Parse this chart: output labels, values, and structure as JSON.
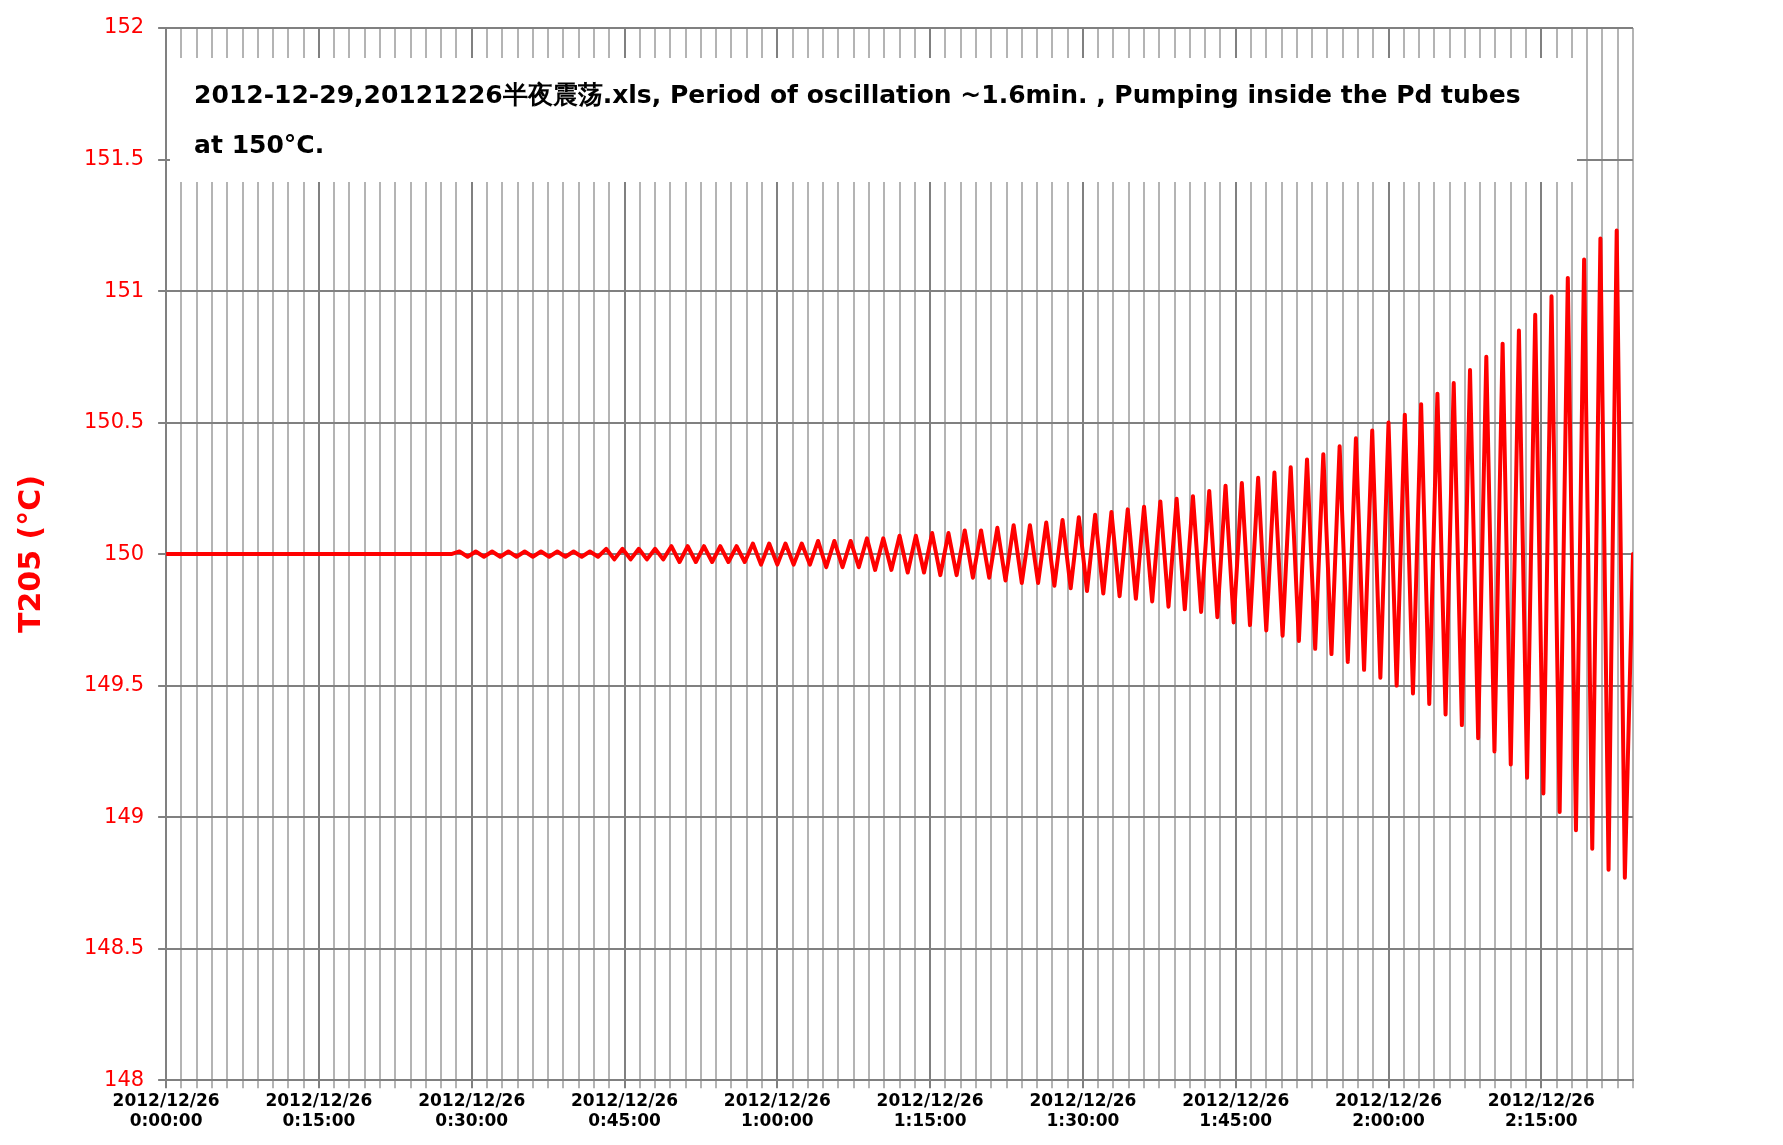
{
  "chart_data": {
    "type": "line",
    "ylabel": "T205 (°C)",
    "annotations": [
      "2012-12-29,20121226半夜震荡.xls, Period of oscillation ~1.6min. , Pumping inside the Pd tubes at 150°C."
    ],
    "series": [
      {
        "color": "#ff0000",
        "x": [
          "2012-12-26T00:00:00",
          "2012-12-26T00:28:00",
          "2012-12-26T00:28:48",
          "2012-12-26T00:29:36",
          "2012-12-26T00:30:24",
          "2012-12-26T00:31:12",
          "2012-12-26T00:32:00",
          "2012-12-26T00:32:48",
          "2012-12-26T00:33:36",
          "2012-12-26T00:34:24",
          "2012-12-26T00:35:12",
          "2012-12-26T00:36:00",
          "2012-12-26T00:36:48",
          "2012-12-26T00:37:36",
          "2012-12-26T00:38:24",
          "2012-12-26T00:39:12",
          "2012-12-26T00:40:00",
          "2012-12-26T00:40:48",
          "2012-12-26T00:41:36",
          "2012-12-26T00:42:24",
          "2012-12-26T00:43:12",
          "2012-12-26T00:44:00",
          "2012-12-26T00:44:48",
          "2012-12-26T00:45:36",
          "2012-12-26T00:46:24",
          "2012-12-26T00:47:12",
          "2012-12-26T00:48:00",
          "2012-12-26T00:48:48",
          "2012-12-26T00:49:36",
          "2012-12-26T00:50:24",
          "2012-12-26T00:51:12",
          "2012-12-26T00:52:00",
          "2012-12-26T00:52:48",
          "2012-12-26T00:53:36",
          "2012-12-26T00:54:24",
          "2012-12-26T00:55:12",
          "2012-12-26T00:56:00",
          "2012-12-26T00:56:48",
          "2012-12-26T00:57:36",
          "2012-12-26T00:58:24",
          "2012-12-26T00:59:12",
          "2012-12-26T01:00:00",
          "2012-12-26T01:00:48",
          "2012-12-26T01:01:36",
          "2012-12-26T01:02:24",
          "2012-12-26T01:03:12",
          "2012-12-26T01:04:00",
          "2012-12-26T01:04:48",
          "2012-12-26T01:05:36",
          "2012-12-26T01:06:24",
          "2012-12-26T01:07:12",
          "2012-12-26T01:08:00",
          "2012-12-26T01:08:48",
          "2012-12-26T01:09:36",
          "2012-12-26T01:10:24",
          "2012-12-26T01:11:12",
          "2012-12-26T01:12:00",
          "2012-12-26T01:12:48",
          "2012-12-26T01:13:36",
          "2012-12-26T01:14:24",
          "2012-12-26T01:15:12",
          "2012-12-26T01:16:00",
          "2012-12-26T01:16:48",
          "2012-12-26T01:17:36",
          "2012-12-26T01:18:24",
          "2012-12-26T01:19:12",
          "2012-12-26T01:20:00",
          "2012-12-26T01:20:48",
          "2012-12-26T01:21:36",
          "2012-12-26T01:22:24",
          "2012-12-26T01:23:12",
          "2012-12-26T01:24:00",
          "2012-12-26T01:24:48",
          "2012-12-26T01:25:36",
          "2012-12-26T01:26:24",
          "2012-12-26T01:27:12",
          "2012-12-26T01:28:00",
          "2012-12-26T01:28:48",
          "2012-12-26T01:29:36",
          "2012-12-26T01:30:24",
          "2012-12-26T01:31:12",
          "2012-12-26T01:32:00",
          "2012-12-26T01:32:48",
          "2012-12-26T01:33:36",
          "2012-12-26T01:34:24",
          "2012-12-26T01:35:12",
          "2012-12-26T01:36:00",
          "2012-12-26T01:36:48",
          "2012-12-26T01:37:36",
          "2012-12-26T01:38:24",
          "2012-12-26T01:39:12",
          "2012-12-26T01:40:00",
          "2012-12-26T01:40:48",
          "2012-12-26T01:41:36",
          "2012-12-26T01:42:24",
          "2012-12-26T01:43:12",
          "2012-12-26T01:44:00",
          "2012-12-26T01:44:48",
          "2012-12-26T01:45:36",
          "2012-12-26T01:46:24",
          "2012-12-26T01:47:12",
          "2012-12-26T01:48:00",
          "2012-12-26T01:48:48",
          "2012-12-26T01:49:36",
          "2012-12-26T01:50:24",
          "2012-12-26T01:51:12",
          "2012-12-26T01:52:00",
          "2012-12-26T01:52:48",
          "2012-12-26T01:53:36",
          "2012-12-26T01:54:24",
          "2012-12-26T01:55:12",
          "2012-12-26T01:56:00",
          "2012-12-26T01:56:48",
          "2012-12-26T01:57:36",
          "2012-12-26T01:58:24",
          "2012-12-26T01:59:12",
          "2012-12-26T02:00:00",
          "2012-12-26T02:00:48",
          "2012-12-26T02:01:36",
          "2012-12-26T02:02:24",
          "2012-12-26T02:03:12",
          "2012-12-26T02:04:00",
          "2012-12-26T02:04:48",
          "2012-12-26T02:05:36",
          "2012-12-26T02:06:24",
          "2012-12-26T02:07:12",
          "2012-12-26T02:08:00",
          "2012-12-26T02:08:48",
          "2012-12-26T02:09:36",
          "2012-12-26T02:10:24",
          "2012-12-26T02:11:12",
          "2012-12-26T02:12:00",
          "2012-12-26T02:12:48",
          "2012-12-26T02:13:36",
          "2012-12-26T02:14:24",
          "2012-12-26T02:15:12",
          "2012-12-26T02:16:00",
          "2012-12-26T02:16:48",
          "2012-12-26T02:17:36",
          "2012-12-26T02:18:24",
          "2012-12-26T02:19:12",
          "2012-12-26T02:20:00",
          "2012-12-26T02:20:48",
          "2012-12-26T02:21:36",
          "2012-12-26T02:22:24",
          "2012-12-26T02:23:12",
          "2012-12-26T02:24:00"
        ],
        "values": [
          150,
          150,
          150.01,
          149.99,
          150.01,
          149.99,
          150.01,
          149.99,
          150.01,
          149.99,
          150.01,
          149.99,
          150.01,
          149.99,
          150.01,
          149.99,
          150.01,
          149.99,
          150.01,
          149.99,
          150.02,
          149.98,
          150.02,
          149.98,
          150.02,
          149.98,
          150.02,
          149.98,
          150.03,
          149.97,
          150.03,
          149.97,
          150.03,
          149.97,
          150.03,
          149.97,
          150.03,
          149.97,
          150.04,
          149.96,
          150.04,
          149.96,
          150.04,
          149.96,
          150.04,
          149.96,
          150.05,
          149.95,
          150.05,
          149.95,
          150.05,
          149.95,
          150.06,
          149.94,
          150.06,
          149.94,
          150.07,
          149.93,
          150.07,
          149.93,
          150.08,
          149.92,
          150.08,
          149.92,
          150.09,
          149.91,
          150.09,
          149.91,
          150.1,
          149.9,
          150.11,
          149.89,
          150.11,
          149.89,
          150.12,
          149.88,
          150.13,
          149.87,
          150.14,
          149.86,
          150.15,
          149.85,
          150.16,
          149.84,
          150.17,
          149.83,
          150.18,
          149.82,
          150.2,
          149.8,
          150.21,
          149.79,
          150.22,
          149.78,
          150.24,
          149.76,
          150.26,
          149.74,
          150.27,
          149.73,
          150.29,
          149.71,
          150.31,
          149.69,
          150.33,
          149.67,
          150.36,
          149.64,
          150.38,
          149.62,
          150.41,
          149.59,
          150.44,
          149.56,
          150.47,
          149.53,
          150.5,
          149.5,
          150.53,
          149.47,
          150.57,
          149.43,
          150.61,
          149.39,
          150.65,
          149.35,
          150.7,
          149.3,
          150.75,
          149.25,
          150.8,
          149.2,
          150.85,
          149.15,
          150.91,
          149.09,
          150.98,
          149.02,
          151.05,
          148.95,
          151.12,
          148.88,
          151.2,
          148.8,
          151.23,
          148.77,
          150
        ]
      }
    ],
    "xlim": [
      "2012-12-26T00:00:00",
      "2012-12-26T02:24:00"
    ],
    "xticks": [
      {
        "value": "2012-12-26T00:00:00",
        "label": "2012/12/26 0:00:00"
      },
      {
        "value": "2012-12-26T00:01:30",
        "label": null
      },
      {
        "value": "2012-12-26T00:03:00",
        "label": null
      },
      {
        "value": "2012-12-26T00:04:30",
        "label": null
      },
      {
        "value": "2012-12-26T00:06:00",
        "label": null
      },
      {
        "value": "2012-12-26T00:07:30",
        "label": null
      },
      {
        "value": "2012-12-26T00:09:00",
        "label": null
      },
      {
        "value": "2012-12-26T00:10:30",
        "label": null
      },
      {
        "value": "2012-12-26T00:12:00",
        "label": null
      },
      {
        "value": "2012-12-26T00:13:30",
        "label": null
      },
      {
        "value": "2012-12-26T00:15:00",
        "label": "2012/12/26 0:15:00"
      },
      {
        "value": "2012-12-26T00:16:30",
        "label": null
      },
      {
        "value": "2012-12-26T00:18:00",
        "label": null
      },
      {
        "value": "2012-12-26T00:19:30",
        "label": null
      },
      {
        "value": "2012-12-26T00:21:00",
        "label": null
      },
      {
        "value": "2012-12-26T00:22:30",
        "label": null
      },
      {
        "value": "2012-12-26T00:24:00",
        "label": null
      },
      {
        "value": "2012-12-26T00:25:30",
        "label": null
      },
      {
        "value": "2012-12-26T00:27:00",
        "label": null
      },
      {
        "value": "2012-12-26T00:28:30",
        "label": null
      },
      {
        "value": "2012-12-26T00:30:00",
        "label": "2012/12/26 0:30:00"
      },
      {
        "value": "2012-12-26T00:31:30",
        "label": null
      },
      {
        "value": "2012-12-26T00:33:00",
        "label": null
      },
      {
        "value": "2012-12-26T00:34:30",
        "label": null
      },
      {
        "value": "2012-12-26T00:36:00",
        "label": null
      },
      {
        "value": "2012-12-26T00:37:30",
        "label": null
      },
      {
        "value": "2012-12-26T00:39:00",
        "label": null
      },
      {
        "value": "2012-12-26T00:40:30",
        "label": null
      },
      {
        "value": "2012-12-26T00:42:00",
        "label": null
      },
      {
        "value": "2012-12-26T00:43:30",
        "label": null
      },
      {
        "value": "2012-12-26T00:45:00",
        "label": "2012/12/26 0:45:00"
      },
      {
        "value": "2012-12-26T00:46:30",
        "label": null
      },
      {
        "value": "2012-12-26T00:48:00",
        "label": null
      },
      {
        "value": "2012-12-26T00:49:30",
        "label": null
      },
      {
        "value": "2012-12-26T00:51:00",
        "label": null
      },
      {
        "value": "2012-12-26T00:52:30",
        "label": null
      },
      {
        "value": "2012-12-26T00:54:00",
        "label": null
      },
      {
        "value": "2012-12-26T00:55:30",
        "label": null
      },
      {
        "value": "2012-12-26T00:57:00",
        "label": null
      },
      {
        "value": "2012-12-26T00:58:30",
        "label": null
      },
      {
        "value": "2012-12-26T01:00:00",
        "label": "2012/12/26 1:00:00"
      },
      {
        "value": "2012-12-26T01:01:30",
        "label": null
      },
      {
        "value": "2012-12-26T01:03:00",
        "label": null
      },
      {
        "value": "2012-12-26T01:04:30",
        "label": null
      },
      {
        "value": "2012-12-26T01:06:00",
        "label": null
      },
      {
        "value": "2012-12-26T01:07:30",
        "label": null
      },
      {
        "value": "2012-12-26T01:09:00",
        "label": null
      },
      {
        "value": "2012-12-26T01:10:30",
        "label": null
      },
      {
        "value": "2012-12-26T01:12:00",
        "label": null
      },
      {
        "value": "2012-12-26T01:13:30",
        "label": null
      },
      {
        "value": "2012-12-26T01:15:00",
        "label": "2012/12/26 1:15:00"
      },
      {
        "value": "2012-12-26T01:16:30",
        "label": null
      },
      {
        "value": "2012-12-26T01:18:00",
        "label": null
      },
      {
        "value": "2012-12-26T01:19:30",
        "label": null
      },
      {
        "value": "2012-12-26T01:21:00",
        "label": null
      },
      {
        "value": "2012-12-26T01:22:30",
        "label": null
      },
      {
        "value": "2012-12-26T01:24:00",
        "label": null
      },
      {
        "value": "2012-12-26T01:25:30",
        "label": null
      },
      {
        "value": "2012-12-26T01:27:00",
        "label": null
      },
      {
        "value": "2012-12-26T01:28:30",
        "label": null
      },
      {
        "value": "2012-12-26T01:30:00",
        "label": "2012/12/26 1:30:00"
      },
      {
        "value": "2012-12-26T01:31:30",
        "label": null
      },
      {
        "value": "2012-12-26T01:33:00",
        "label": null
      },
      {
        "value": "2012-12-26T01:34:30",
        "label": null
      },
      {
        "value": "2012-12-26T01:36:00",
        "label": null
      },
      {
        "value": "2012-12-26T01:37:30",
        "label": null
      },
      {
        "value": "2012-12-26T01:39:00",
        "label": null
      },
      {
        "value": "2012-12-26T01:40:30",
        "label": null
      },
      {
        "value": "2012-12-26T01:42:00",
        "label": null
      },
      {
        "value": "2012-12-26T01:43:30",
        "label": null
      },
      {
        "value": "2012-12-26T01:45:00",
        "label": "2012/12/26 1:45:00"
      },
      {
        "value": "2012-12-26T01:46:30",
        "label": null
      },
      {
        "value": "2012-12-26T01:48:00",
        "label": null
      },
      {
        "value": "2012-12-26T01:49:30",
        "label": null
      },
      {
        "value": "2012-12-26T01:51:00",
        "label": null
      },
      {
        "value": "2012-12-26T01:52:30",
        "label": null
      },
      {
        "value": "2012-12-26T01:54:00",
        "label": null
      },
      {
        "value": "2012-12-26T01:55:30",
        "label": null
      },
      {
        "value": "2012-12-26T01:57:00",
        "label": null
      },
      {
        "value": "2012-12-26T01:58:30",
        "label": null
      },
      {
        "value": "2012-12-26T02:00:00",
        "label": "2012/12/26 2:00:00"
      },
      {
        "value": "2012-12-26T02:01:30",
        "label": null
      },
      {
        "value": "2012-12-26T02:03:00",
        "label": null
      },
      {
        "value": "2012-12-26T02:04:30",
        "label": null
      },
      {
        "value": "2012-12-26T02:06:00",
        "label": null
      },
      {
        "value": "2012-12-26T02:07:30",
        "label": null
      },
      {
        "value": "2012-12-26T02:09:00",
        "label": null
      },
      {
        "value": "2012-12-26T02:10:30",
        "label": null
      },
      {
        "value": "2012-12-26T02:12:00",
        "label": null
      },
      {
        "value": "2012-12-26T02:13:30",
        "label": null
      },
      {
        "value": "2012-12-26T02:15:00",
        "label": "2012/12/26 2:15:00"
      },
      {
        "value": "2012-12-26T02:16:30",
        "label": null
      },
      {
        "value": "2012-12-26T02:18:00",
        "label": null
      },
      {
        "value": "2012-12-26T02:19:30",
        "label": null
      },
      {
        "value": "2012-12-26T02:21:00",
        "label": null
      },
      {
        "value": "2012-12-26T02:22:30",
        "label": null
      },
      {
        "value": "2012-12-26T02:24:00",
        "label": null
      }
    ],
    "ylim": [
      148,
      152
    ],
    "yticks": [
      148,
      148.5,
      149,
      149.5,
      150,
      150.5,
      151,
      151.5,
      152
    ],
    "grid": true
  }
}
